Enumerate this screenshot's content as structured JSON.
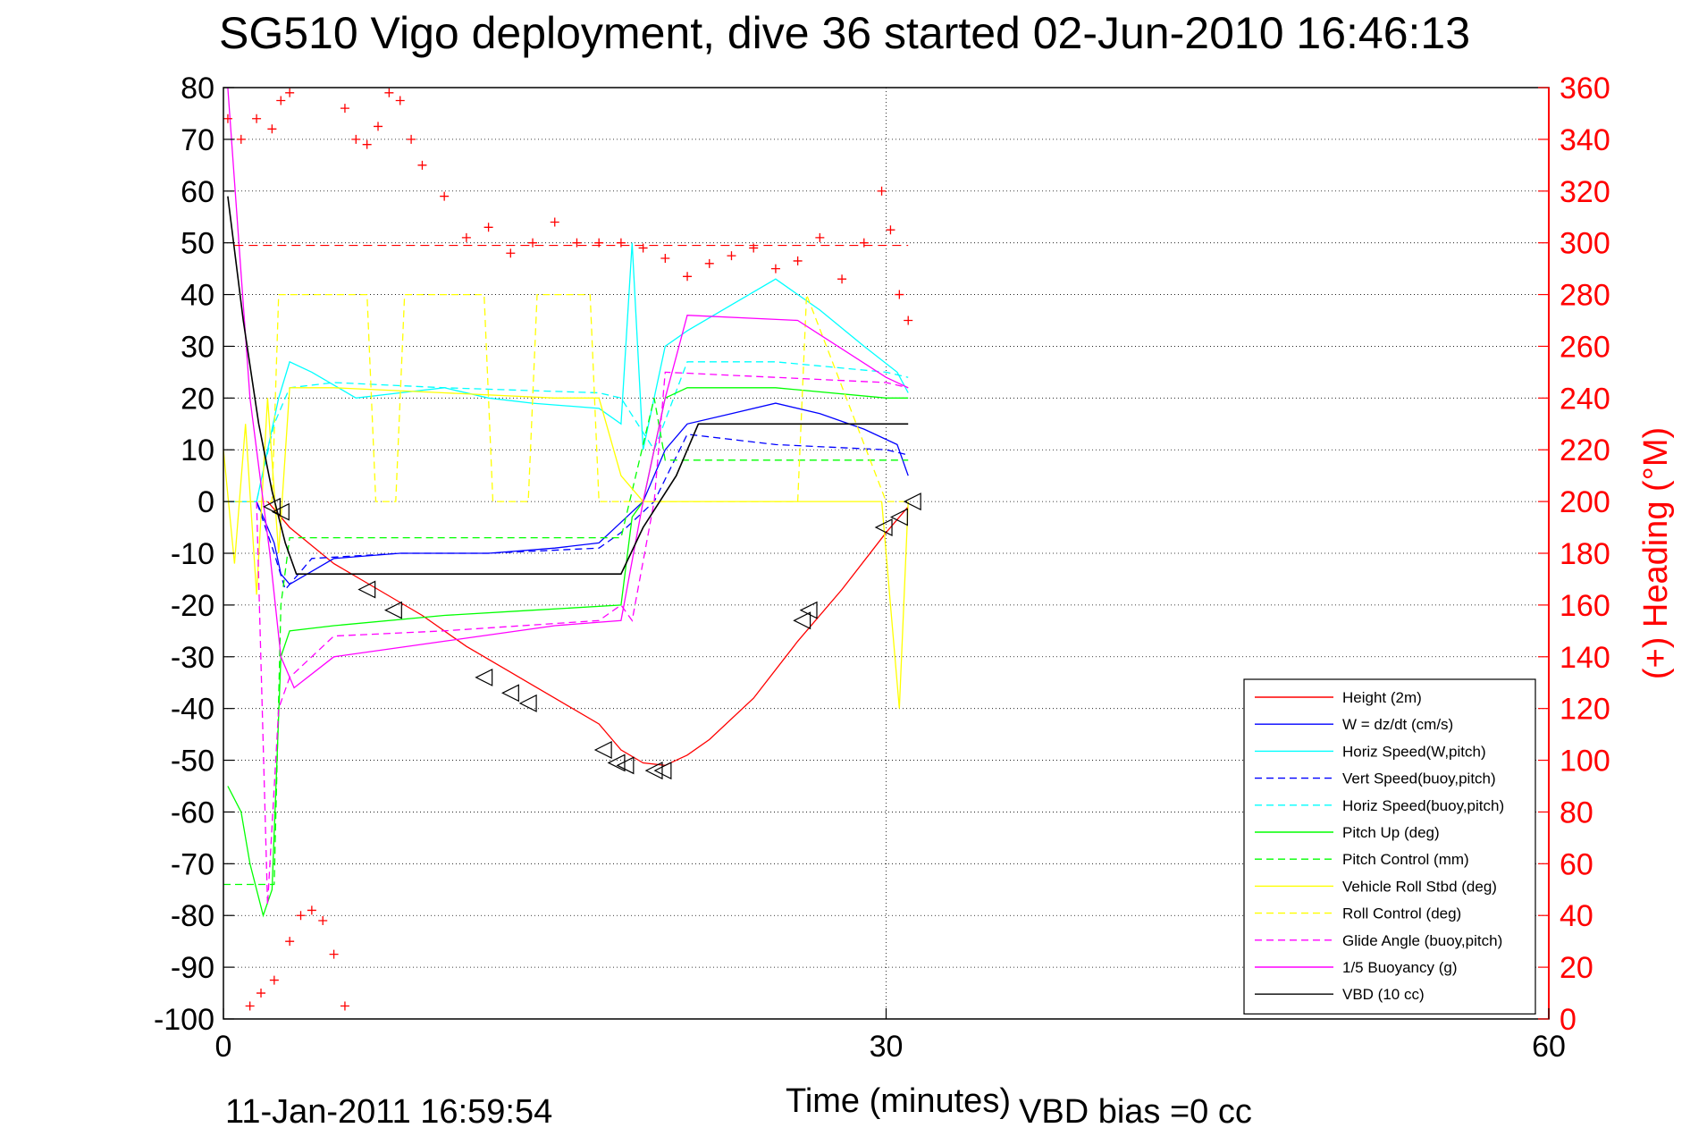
{
  "chart_data": {
    "type": "line",
    "title": "SG510 Vigo deployment, dive 36 started 02-Jun-2010 16:46:13",
    "xlabel": "Time (minutes)",
    "ylabel_right": "(+) Heading (°M)",
    "footer_left": "11-Jan-2011 16:59:54",
    "footer_right": "VBD bias =0 cc",
    "xlim": [
      0,
      60
    ],
    "ylim": [
      -100,
      80
    ],
    "ylim_right": [
      0,
      360
    ],
    "x_ticks": [
      0,
      30,
      60
    ],
    "y_ticks": [
      -100,
      -90,
      -80,
      -70,
      -60,
      -50,
      -40,
      -30,
      -20,
      -10,
      0,
      10,
      20,
      30,
      40,
      50,
      60,
      70,
      80
    ],
    "y_ticks_right": [
      0,
      20,
      40,
      60,
      80,
      100,
      120,
      140,
      160,
      180,
      200,
      220,
      240,
      260,
      280,
      300,
      320,
      340,
      360
    ],
    "grid": "dotted",
    "legend_position": "bottom-right",
    "colors": {
      "height": "#ff0000",
      "w": "#0000ff",
      "horiz_w": "#00ffff",
      "vert_buoy": "#0000ff",
      "horiz_buoy": "#00ffff",
      "pitch": "#00ff00",
      "pitch_ctrl": "#00ff00",
      "roll": "#ffff00",
      "roll_ctrl": "#ffff00",
      "glide": "#ff00ff",
      "buoyancy": "#ff00ff",
      "vbd": "#000000",
      "heading": "#ff0000"
    },
    "series": [
      {
        "name": "Height (2m)",
        "color": "#ff0000",
        "style": "solid",
        "x": [
          2,
          3,
          5,
          7,
          9,
          11,
          13,
          15,
          17,
          18,
          19,
          20,
          21,
          22,
          24,
          26,
          28,
          30,
          31
        ],
        "y": [
          0,
          -5,
          -12,
          -17,
          -22,
          -28,
          -33,
          -38,
          -43,
          -48,
          -50.5,
          -51,
          -49,
          -46,
          -38,
          -27,
          -17,
          -6,
          -1
        ]
      },
      {
        "name": "W = dz/dt (cm/s)",
        "color": "#0000ff",
        "style": "solid",
        "x": [
          0,
          1.5,
          2.3,
          2.6,
          3,
          5,
          8,
          12,
          15,
          17,
          18,
          19,
          20,
          21,
          23,
          25,
          27,
          29,
          30.5,
          31
        ],
        "y": [
          0,
          0,
          -8,
          -14,
          -16,
          -11,
          -10,
          -10,
          -9,
          -8,
          -4,
          0,
          10,
          15,
          17,
          19,
          17,
          14,
          11,
          5
        ]
      },
      {
        "name": "Horiz Speed(W,pitch)",
        "color": "#00ffff",
        "style": "solid",
        "x": [
          0,
          1.5,
          2.5,
          3,
          4,
          6,
          8,
          10,
          12,
          14,
          17,
          18,
          18.5,
          19,
          20,
          21,
          23,
          25,
          27,
          29,
          30.5,
          31
        ],
        "y": [
          0,
          0,
          20,
          27,
          25,
          20,
          21,
          22,
          20,
          19,
          18,
          15,
          50,
          10,
          30,
          33,
          38,
          43,
          37,
          30,
          25,
          21
        ]
      },
      {
        "name": "Vert Speed(buoy,pitch)",
        "color": "#0000ff",
        "style": "dashed",
        "x": [
          0,
          1.5,
          2.3,
          2.8,
          4,
          8,
          12,
          17,
          18,
          19.5,
          21,
          25,
          30,
          31
        ],
        "y": [
          0,
          0,
          -10,
          -17,
          -11,
          -10,
          -10,
          -9,
          -6,
          0,
          13,
          11,
          10,
          9
        ]
      },
      {
        "name": "Horiz Speed(buoy,pitch)",
        "color": "#00ffff",
        "style": "dashed",
        "x": [
          0,
          1.5,
          2.3,
          3,
          5,
          10,
          17,
          18,
          19.5,
          21,
          25,
          30,
          31
        ],
        "y": [
          0,
          0,
          15,
          22,
          23,
          22,
          21,
          20,
          10,
          27,
          27,
          25,
          24
        ]
      },
      {
        "name": "Pitch Up (deg)",
        "color": "#00ff00",
        "style": "solid",
        "x": [
          0.2,
          0.8,
          1.2,
          1.8,
          2.2,
          2.6,
          3.0,
          5,
          10,
          14,
          18,
          18.5,
          19,
          20,
          21,
          25,
          30,
          31
        ],
        "y": [
          -55,
          -60,
          -70,
          -80,
          -75,
          -30,
          -25,
          -24,
          -22,
          -21,
          -20,
          -3,
          0,
          20,
          22,
          22,
          20,
          20
        ]
      },
      {
        "name": "Pitch Control (mm)",
        "color": "#00ff00",
        "style": "dashed",
        "x": [
          0,
          1.5,
          2.3,
          2.6,
          3,
          10,
          17,
          18,
          19.5,
          20,
          30,
          31
        ],
        "y": [
          -74,
          -74,
          -74,
          -20,
          -7,
          -7,
          -7,
          -7,
          20,
          8,
          8,
          8
        ]
      },
      {
        "name": "Vehicle Roll Stbd (deg)",
        "color": "#ffff00",
        "style": "solid",
        "x": [
          0,
          0.5,
          1,
          1.5,
          2,
          2.5,
          3,
          5,
          10,
          15,
          17,
          18,
          19,
          20,
          25,
          29.8,
          30.2,
          30.6,
          31
        ],
        "y": [
          10,
          -12,
          15,
          -18,
          20,
          -10,
          22,
          22,
          21,
          20,
          20,
          5,
          0,
          0,
          0,
          0,
          -20,
          -40,
          0
        ]
      },
      {
        "name": "Roll Control (deg)",
        "color": "#ffff00",
        "style": "dashed",
        "x": [
          0,
          2.2,
          2.5,
          6.5,
          6.9,
          7.8,
          8.2,
          11.8,
          12.2,
          13.8,
          14.2,
          16.6,
          17,
          18,
          19,
          26,
          26.4,
          30,
          31
        ],
        "y": [
          0,
          0,
          40,
          40,
          0,
          0,
          40,
          40,
          0,
          0,
          40,
          40,
          0,
          0,
          0,
          0,
          40,
          0,
          0
        ]
      },
      {
        "name": "Glide Angle (buoy,pitch)",
        "color": "#ff00ff",
        "style": "dashed",
        "x": [
          1.5,
          2.0,
          2.5,
          3.0,
          5,
          10,
          17,
          18,
          18.5,
          19.5,
          20,
          25,
          30,
          31
        ],
        "y": [
          0,
          -78,
          -40,
          -34,
          -26,
          -25,
          -23,
          -20,
          -23,
          0,
          25,
          24,
          23,
          22
        ]
      },
      {
        "name": "1/5 Buoyancy (g)",
        "color": "#ff00ff",
        "style": "solid",
        "x": [
          0.2,
          1.2,
          2.1,
          2.6,
          3.2,
          5,
          10,
          15,
          18,
          19,
          20,
          21,
          26,
          30,
          31
        ],
        "y": [
          80,
          20,
          -10,
          -30,
          -36,
          -30,
          -27,
          -24,
          -23,
          0,
          20,
          36,
          35,
          24,
          22
        ]
      },
      {
        "name": "VBD (10 cc)",
        "color": "#000000",
        "style": "solid",
        "x": [
          0.2,
          0.9,
          1.6,
          2.2,
          2.8,
          3.3,
          18,
          19,
          20.5,
          21.5,
          31
        ],
        "y": [
          59,
          35,
          15,
          2,
          -8,
          -14,
          -14,
          -5,
          5,
          15,
          15
        ]
      }
    ],
    "height_markers": [
      {
        "x": 2.2,
        "y": -1
      },
      {
        "x": 2.6,
        "y": -2
      },
      {
        "x": 6.5,
        "y": -17
      },
      {
        "x": 7.7,
        "y": -21
      },
      {
        "x": 11.8,
        "y": -34
      },
      {
        "x": 13.0,
        "y": -37
      },
      {
        "x": 13.8,
        "y": -39
      },
      {
        "x": 17.2,
        "y": -48
      },
      {
        "x": 17.8,
        "y": -50.5
      },
      {
        "x": 18.2,
        "y": -51
      },
      {
        "x": 19.5,
        "y": -52
      },
      {
        "x": 19.9,
        "y": -52
      },
      {
        "x": 26.2,
        "y": -23
      },
      {
        "x": 26.5,
        "y": -21
      },
      {
        "x": 29.9,
        "y": -5
      },
      {
        "x": 30.6,
        "y": -3
      },
      {
        "x": 31.2,
        "y": 0
      }
    ],
    "heading": {
      "name": "Heading",
      "units": "°M",
      "marker": "+",
      "target": 299,
      "x": [
        0.2,
        0.8,
        1.5,
        2.2,
        2.6,
        3.0,
        5.5,
        6.0,
        6.5,
        7.0,
        7.5,
        8.0,
        8.5,
        9.0,
        10,
        11,
        12,
        13,
        14,
        15,
        16,
        17,
        18,
        19,
        20,
        21,
        22,
        23,
        24,
        25,
        26,
        27,
        28,
        29,
        29.8,
        30.2,
        30.6,
        31.0,
        1.2,
        1.7,
        2.3,
        3.0,
        3.5,
        4.0,
        4.5,
        5.0,
        5.5
      ],
      "y": [
        348,
        340,
        348,
        344,
        355,
        358,
        352,
        340,
        338,
        345,
        358,
        355,
        340,
        330,
        318,
        302,
        306,
        296,
        300,
        308,
        300,
        300,
        300,
        298,
        294,
        287,
        292,
        295,
        298,
        290,
        293,
        302,
        286,
        300,
        320,
        305,
        280,
        270,
        5,
        10,
        15,
        30,
        40,
        42,
        38,
        25,
        5
      ]
    }
  }
}
